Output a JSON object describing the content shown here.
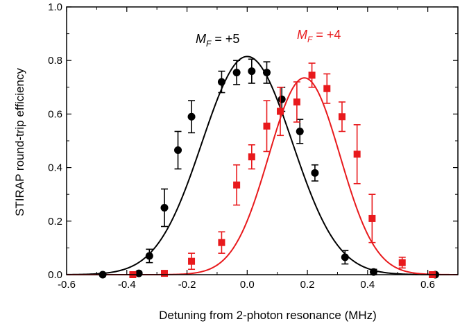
{
  "chart_data": {
    "type": "scatter",
    "title": "",
    "xlabel": "Detuning from 2-photon resonance (MHz)",
    "ylabel": "STIRAP round-trip efficiency",
    "xlim": [
      -0.6,
      0.7
    ],
    "ylim": [
      0.0,
      1.0
    ],
    "xticks": [
      "-0.6",
      "-0.4",
      "-0.2",
      "0.0",
      "0.2",
      "0.4",
      "0.6"
    ],
    "yticks": [
      "0.0",
      "0.2",
      "0.4",
      "0.6",
      "0.8",
      "1.0"
    ],
    "grid": false,
    "series": [
      {
        "name_main": "M",
        "name_sub": "F",
        "name_rest": " = +5",
        "color": "#000000",
        "marker": "circle",
        "points": [
          {
            "x": -0.48,
            "y": 0.0,
            "err": 0.005
          },
          {
            "x": -0.36,
            "y": 0.005,
            "err": 0.005
          },
          {
            "x": -0.325,
            "y": 0.07,
            "err": 0.025
          },
          {
            "x": -0.275,
            "y": 0.25,
            "err": 0.07
          },
          {
            "x": -0.23,
            "y": 0.465,
            "err": 0.07
          },
          {
            "x": -0.185,
            "y": 0.59,
            "err": 0.06
          },
          {
            "x": -0.085,
            "y": 0.72,
            "err": 0.04
          },
          {
            "x": -0.035,
            "y": 0.755,
            "err": 0.045
          },
          {
            "x": 0.015,
            "y": 0.76,
            "err": 0.045
          },
          {
            "x": 0.065,
            "y": 0.755,
            "err": 0.04
          },
          {
            "x": 0.115,
            "y": 0.655,
            "err": 0.045
          },
          {
            "x": 0.175,
            "y": 0.535,
            "err": 0.045
          },
          {
            "x": 0.225,
            "y": 0.38,
            "err": 0.03
          },
          {
            "x": 0.325,
            "y": 0.065,
            "err": 0.025
          },
          {
            "x": 0.42,
            "y": 0.01,
            "err": 0.01
          },
          {
            "x": 0.625,
            "y": 0.0,
            "err": 0.005
          }
        ],
        "fit": {
          "type": "gaussian",
          "amplitude": 0.815,
          "center": 0.0,
          "sigma": 0.15
        }
      },
      {
        "name_main": "M",
        "name_sub": "F",
        "name_rest": " = +4",
        "color": "#e8191c",
        "marker": "square",
        "points": [
          {
            "x": -0.38,
            "y": 0.0,
            "err": 0.005
          },
          {
            "x": -0.275,
            "y": 0.005,
            "err": 0.005
          },
          {
            "x": -0.185,
            "y": 0.05,
            "err": 0.03
          },
          {
            "x": -0.085,
            "y": 0.12,
            "err": 0.04
          },
          {
            "x": -0.035,
            "y": 0.335,
            "err": 0.075
          },
          {
            "x": 0.015,
            "y": 0.44,
            "err": 0.045
          },
          {
            "x": 0.065,
            "y": 0.555,
            "err": 0.095
          },
          {
            "x": 0.11,
            "y": 0.61,
            "err": 0.09
          },
          {
            "x": 0.165,
            "y": 0.645,
            "err": 0.075
          },
          {
            "x": 0.215,
            "y": 0.745,
            "err": 0.045
          },
          {
            "x": 0.265,
            "y": 0.695,
            "err": 0.055
          },
          {
            "x": 0.315,
            "y": 0.59,
            "err": 0.055
          },
          {
            "x": 0.365,
            "y": 0.45,
            "err": 0.11
          },
          {
            "x": 0.415,
            "y": 0.21,
            "err": 0.09
          },
          {
            "x": 0.515,
            "y": 0.045,
            "err": 0.02
          },
          {
            "x": 0.615,
            "y": 0.0,
            "err": 0.005
          }
        ],
        "fit": {
          "type": "gaussian",
          "amplitude": 0.735,
          "center": 0.19,
          "sigma": 0.118
        }
      }
    ]
  }
}
